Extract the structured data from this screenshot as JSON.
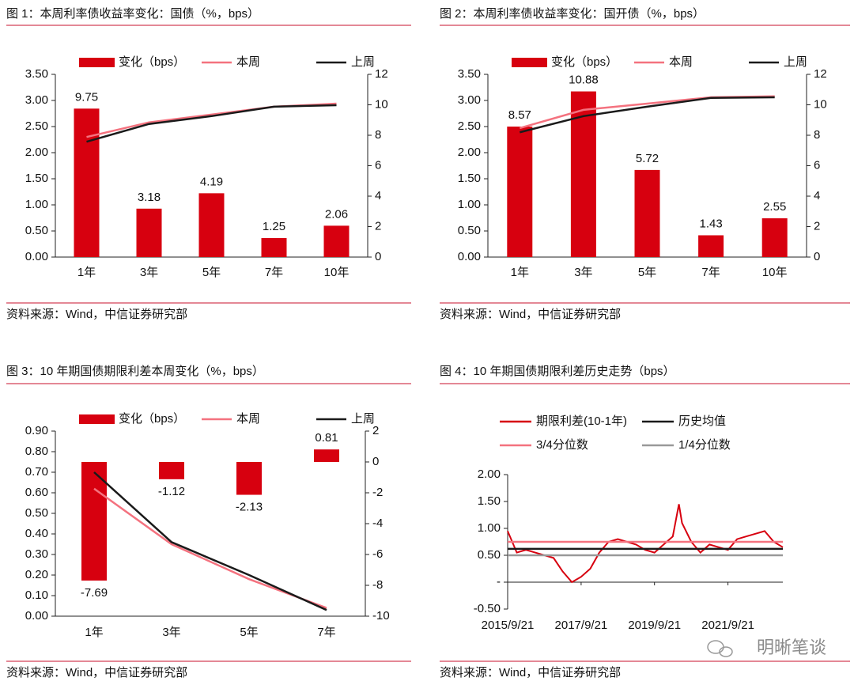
{
  "chart_data": [
    {
      "type": "combo",
      "title": "图 1：本周利率债收益率变化：国债（%，bps）",
      "source": "资料来源：Wind，中信证券研究部",
      "categories": [
        "1年",
        "3年",
        "5年",
        "7年",
        "10年"
      ],
      "ylim": [
        0,
        3.5
      ],
      "yticks": [
        {
          "value": 0,
          "label": "0.00"
        },
        {
          "value": 0.5,
          "label": "0.50"
        },
        {
          "value": 1,
          "label": "1.00"
        },
        {
          "value": 1.5,
          "label": "1.50"
        },
        {
          "value": 2,
          "label": "2.00"
        },
        {
          "value": 2.5,
          "label": "2.50"
        },
        {
          "value": 3,
          "label": "3.00"
        },
        {
          "value": 3.5,
          "label": "3.50"
        }
      ],
      "y2lim": [
        0,
        12
      ],
      "y2ticks": [
        0,
        2,
        4,
        6,
        8,
        10,
        12
      ],
      "series": [
        {
          "name": "变化（bps）",
          "type": "bar",
          "axis": "y2",
          "color": "#d7000f",
          "values": [
            9.75,
            3.18,
            4.19,
            1.25,
            2.06
          ]
        },
        {
          "name": "本周",
          "type": "line",
          "color": "#f4727f",
          "values": [
            2.3,
            2.58,
            2.73,
            2.88,
            2.94
          ]
        },
        {
          "name": "上周",
          "type": "line",
          "color": "#1a1a1a",
          "values": [
            2.21,
            2.55,
            2.7,
            2.88,
            2.91
          ]
        }
      ]
    },
    {
      "type": "combo",
      "title": "图 2：本周利率债收益率变化：国开债（%，bps）",
      "source": "资料来源：Wind，中信证券研究部",
      "categories": [
        "1年",
        "3年",
        "5年",
        "7年",
        "10年"
      ],
      "ylim": [
        0,
        3.5
      ],
      "yticks": [
        {
          "value": 0,
          "label": "0.00"
        },
        {
          "value": 0.5,
          "label": "0.50"
        },
        {
          "value": 1,
          "label": "1.00"
        },
        {
          "value": 1.5,
          "label": "1.50"
        },
        {
          "value": 2,
          "label": "2.00"
        },
        {
          "value": 2.5,
          "label": "2.50"
        },
        {
          "value": 3,
          "label": "3.00"
        },
        {
          "value": 3.5,
          "label": "3.50"
        }
      ],
      "y2lim": [
        0,
        12
      ],
      "y2ticks": [
        0,
        2,
        4,
        6,
        8,
        10,
        12
      ],
      "series": [
        {
          "name": "变化（bps）",
          "type": "bar",
          "axis": "y2",
          "color": "#d7000f",
          "values": [
            8.57,
            10.88,
            5.72,
            1.43,
            2.55
          ]
        },
        {
          "name": "本周",
          "type": "line",
          "color": "#f4727f",
          "values": [
            2.47,
            2.82,
            2.94,
            3.06,
            3.08
          ]
        },
        {
          "name": "上周",
          "type": "line",
          "color": "#1a1a1a",
          "values": [
            2.39,
            2.7,
            2.88,
            3.05,
            3.06
          ]
        }
      ]
    },
    {
      "type": "combo",
      "title": "图 3：10 年期国债期限利差本周变化（%，bps）",
      "source": "资料来源：Wind，中信证券研究部",
      "categories": [
        "1年",
        "3年",
        "5年",
        "7年"
      ],
      "ylim": [
        0,
        0.9
      ],
      "yticks": [
        {
          "value": 0,
          "label": "0.00"
        },
        {
          "value": 0.1,
          "label": "0.10"
        },
        {
          "value": 0.2,
          "label": "0.20"
        },
        {
          "value": 0.3,
          "label": "0.30"
        },
        {
          "value": 0.4,
          "label": "0.40"
        },
        {
          "value": 0.5,
          "label": "0.50"
        },
        {
          "value": 0.6,
          "label": "0.60"
        },
        {
          "value": 0.7,
          "label": "0.70"
        },
        {
          "value": 0.8,
          "label": "0.80"
        },
        {
          "value": 0.9,
          "label": "0.90"
        }
      ],
      "y2lim": [
        -10,
        2
      ],
      "y2ticks": [
        -10,
        -8,
        -6,
        -4,
        -2,
        0,
        2
      ],
      "series": [
        {
          "name": "变化（bps）",
          "type": "bar",
          "axis": "y2",
          "color": "#d7000f",
          "values": [
            -7.69,
            -1.12,
            -2.13,
            0.81
          ]
        },
        {
          "name": "本周",
          "type": "line",
          "color": "#f4727f",
          "values": [
            0.62,
            0.35,
            0.18,
            0.04
          ]
        },
        {
          "name": "上周",
          "type": "line",
          "color": "#1a1a1a",
          "values": [
            0.7,
            0.36,
            0.2,
            0.03
          ]
        }
      ]
    },
    {
      "type": "line",
      "title": "图 4：10 年期国债期限利差历史走势（bps）",
      "source": "资料来源：Wind，中信证券研究部",
      "x": [
        "2015/9/21",
        "2015/12/21",
        "2016/3/21",
        "2016/6/21",
        "2016/9/21",
        "2016/12/21",
        "2017/3/21",
        "2017/6/21",
        "2017/9/21",
        "2017/12/21",
        "2018/3/21",
        "2018/6/21",
        "2018/9/21",
        "2018/12/21",
        "2019/3/21",
        "2019/6/21",
        "2019/9/21",
        "2019/12/21",
        "2020/3/21",
        "2020/5/21",
        "2020/6/21",
        "2020/9/21",
        "2020/12/21",
        "2021/3/21",
        "2021/6/21",
        "2021/9/21",
        "2021/12/21",
        "2022/3/21",
        "2022/6/21",
        "2022/9/21",
        "2022/12/21",
        "2023/3/21"
      ],
      "xlim": [
        "2015/9/21",
        "2023/3/21"
      ],
      "xticks": [
        "2015/9/21",
        "2017/9/21",
        "2019/9/21",
        "2021/9/21"
      ],
      "ylim": [
        -0.5,
        2
      ],
      "yticks": [
        {
          "value": -0.5,
          "label": "-0.50"
        },
        {
          "value": 0,
          "label": "-"
        },
        {
          "value": 0.5,
          "label": "0.50"
        },
        {
          "value": 1,
          "label": "1.00"
        },
        {
          "value": 1.5,
          "label": "1.50"
        },
        {
          "value": 2,
          "label": "2.00"
        }
      ],
      "series": [
        {
          "name": "期限利差(10-1年)",
          "color": "#d7000f",
          "values": [
            0.95,
            0.55,
            0.6,
            0.55,
            0.5,
            0.45,
            0.2,
            0.0,
            0.1,
            0.25,
            0.55,
            0.75,
            0.8,
            0.75,
            0.7,
            0.6,
            0.55,
            0.7,
            0.85,
            1.45,
            1.1,
            0.75,
            0.55,
            0.7,
            0.65,
            0.6,
            0.8,
            0.85,
            0.9,
            0.95,
            0.75,
            0.65
          ]
        },
        {
          "name": "历史均值",
          "color": "#1a1a1a",
          "value": 0.62
        },
        {
          "name": "3/4分位数",
          "color": "#f4727f",
          "value": 0.75
        },
        {
          "name": "1/4分位数",
          "color": "#999999",
          "value": 0.5
        }
      ]
    }
  ],
  "watermark": "明晰笔谈"
}
